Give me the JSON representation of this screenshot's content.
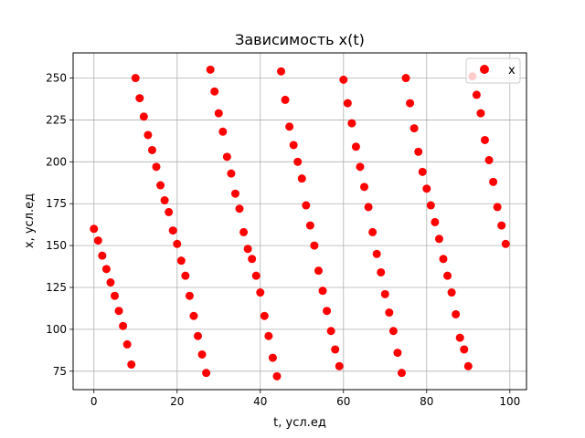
{
  "chart_data": {
    "type": "scatter",
    "title": "Зависимость x(t)",
    "xlabel": "t, усл.ед",
    "ylabel": "x, усл.ед",
    "xlim": [
      -5,
      104
    ],
    "ylim": [
      64,
      265
    ],
    "xticks": [
      0,
      20,
      40,
      60,
      80,
      100
    ],
    "yticks": [
      75,
      100,
      125,
      150,
      175,
      200,
      225,
      250
    ],
    "grid": true,
    "legend_position": "top-right",
    "marker_color": "#ff0000",
    "series": [
      {
        "name": "x",
        "x": [
          0,
          1,
          2,
          3,
          4,
          5,
          6,
          7,
          8,
          9,
          10,
          11,
          12,
          13,
          14,
          15,
          16,
          17,
          18,
          19,
          20,
          21,
          22,
          23,
          24,
          25,
          26,
          27,
          28,
          29,
          30,
          31,
          32,
          33,
          34,
          35,
          36,
          37,
          38,
          39,
          40,
          41,
          42,
          43,
          44,
          45,
          46,
          47,
          48,
          49,
          50,
          51,
          52,
          53,
          54,
          55,
          56,
          57,
          58,
          59,
          60,
          61,
          62,
          63,
          64,
          65,
          66,
          67,
          68,
          69,
          70,
          71,
          72,
          73,
          74,
          75,
          76,
          77,
          78,
          79,
          80,
          81,
          82,
          83,
          84,
          85,
          86,
          87,
          88,
          89,
          90,
          91,
          92,
          93,
          94,
          95,
          96,
          97,
          98,
          99
        ],
        "y": [
          160,
          153,
          144,
          136,
          128,
          120,
          111,
          102,
          91,
          79,
          250,
          238,
          227,
          216,
          207,
          197,
          186,
          177,
          170,
          159,
          151,
          141,
          132,
          120,
          108,
          96,
          85,
          74,
          255,
          242,
          229,
          218,
          203,
          193,
          181,
          172,
          158,
          148,
          142,
          132,
          122,
          108,
          96,
          83,
          72,
          254,
          237,
          221,
          210,
          200,
          190,
          174,
          162,
          150,
          135,
          123,
          111,
          99,
          88,
          78,
          249,
          235,
          223,
          209,
          197,
          185,
          173,
          158,
          145,
          134,
          121,
          110,
          99,
          86,
          74,
          250,
          235,
          220,
          206,
          194,
          184,
          174,
          164,
          154,
          142,
          132,
          122,
          109,
          95,
          88,
          78,
          251,
          240,
          229,
          213,
          201,
          188,
          173,
          162,
          151
        ]
      }
    ]
  }
}
